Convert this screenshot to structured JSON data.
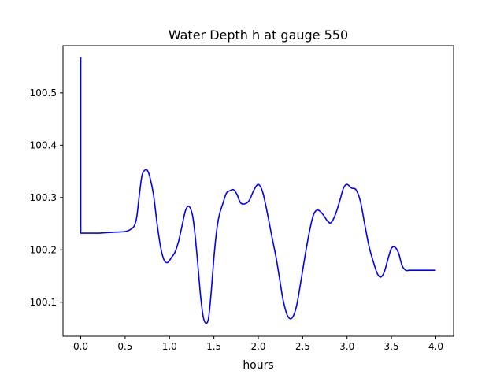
{
  "chart_data": {
    "type": "line",
    "title": "Water Depth h at gauge 550",
    "xlabel": "hours",
    "ylabel": "",
    "xlim": [
      -0.2,
      4.2
    ],
    "ylim": [
      100.035,
      100.59
    ],
    "xticks": [
      0.0,
      0.5,
      1.0,
      1.5,
      2.0,
      2.5,
      3.0,
      3.5,
      4.0
    ],
    "xtick_labels": [
      "0.0",
      "0.5",
      "1.0",
      "1.5",
      "2.0",
      "2.5",
      "3.0",
      "3.5",
      "4.0"
    ],
    "yticks": [
      100.1,
      100.2,
      100.3,
      100.4,
      100.5
    ],
    "ytick_labels": [
      "100.1",
      "100.2",
      "100.3",
      "100.4",
      "100.5"
    ],
    "grid": false,
    "legend": "none",
    "series": [
      {
        "color": "#0000ff",
        "x": [
          0.0,
          0.0,
          0.0,
          0.1,
          0.2,
          0.3,
          0.4,
          0.5,
          0.55,
          0.6,
          0.63,
          0.66,
          0.69,
          0.72,
          0.75,
          0.78,
          0.82,
          0.86,
          0.9,
          0.94,
          0.98,
          1.02,
          1.06,
          1.1,
          1.14,
          1.18,
          1.22,
          1.26,
          1.29,
          1.32,
          1.35,
          1.38,
          1.41,
          1.44,
          1.47,
          1.5,
          1.53,
          1.56,
          1.6,
          1.64,
          1.68,
          1.72,
          1.76,
          1.8,
          1.85,
          1.9,
          1.95,
          2.0,
          2.05,
          2.1,
          2.15,
          2.2,
          2.24,
          2.28,
          2.33,
          2.38,
          2.43,
          2.48,
          2.53,
          2.58,
          2.62,
          2.66,
          2.7,
          2.74,
          2.78,
          2.82,
          2.87,
          2.92,
          2.96,
          3.0,
          3.05,
          3.1,
          3.15,
          3.2,
          3.25,
          3.3,
          3.34,
          3.38,
          3.42,
          3.46,
          3.5,
          3.54,
          3.58,
          3.62,
          3.66,
          3.7,
          3.74,
          3.78,
          3.82,
          3.86,
          3.88,
          3.92,
          3.96,
          4.0
        ],
        "y": [
          100.568,
          100.232,
          100.232,
          100.232,
          100.232,
          100.233,
          100.234,
          100.235,
          100.238,
          100.245,
          100.262,
          100.305,
          100.342,
          100.352,
          100.352,
          100.338,
          100.305,
          100.25,
          100.205,
          100.18,
          100.176,
          100.185,
          100.195,
          100.215,
          100.245,
          100.275,
          100.283,
          100.265,
          100.225,
          100.17,
          100.112,
          100.072,
          100.06,
          100.07,
          100.12,
          100.185,
          100.235,
          100.266,
          100.288,
          100.308,
          100.313,
          100.315,
          100.306,
          100.29,
          100.288,
          100.295,
          100.314,
          100.325,
          100.31,
          100.272,
          100.228,
          100.186,
          100.145,
          100.104,
          100.074,
          100.07,
          100.092,
          100.14,
          100.192,
          100.238,
          100.266,
          100.276,
          100.273,
          100.265,
          100.255,
          100.252,
          100.268,
          100.295,
          100.318,
          100.325,
          100.318,
          100.315,
          100.293,
          100.248,
          100.205,
          100.175,
          100.155,
          100.148,
          100.158,
          100.182,
          100.203,
          100.205,
          100.194,
          100.17,
          100.161,
          100.161,
          100.161,
          100.161,
          100.161,
          100.161,
          100.161,
          100.161,
          100.161,
          100.161
        ]
      }
    ]
  }
}
